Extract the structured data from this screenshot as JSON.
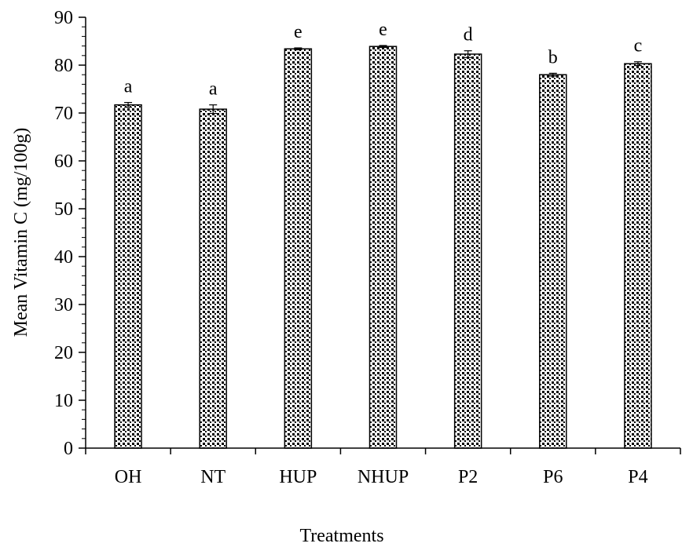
{
  "chart_data": {
    "type": "bar",
    "xlabel": "Treatments",
    "ylabel": "Mean Vitamin C (mg/100g)",
    "ylim": [
      0,
      90
    ],
    "yticks": [
      0,
      10,
      20,
      30,
      40,
      50,
      60,
      70,
      80,
      90
    ],
    "categories": [
      "OH",
      "NT",
      "HUP",
      "NHUP",
      "P2",
      "P6",
      "P4"
    ],
    "values": [
      71.7,
      70.8,
      83.4,
      83.9,
      82.3,
      78.0,
      80.3
    ],
    "errors": [
      0.5,
      0.9,
      0.2,
      0.2,
      0.7,
      0.3,
      0.4
    ],
    "significance_letters": [
      "a",
      "a",
      "e",
      "e",
      "d",
      "b",
      "c"
    ],
    "grid": false,
    "legend": "none",
    "bar_fill": "dotted pattern",
    "colors": {
      "bar_outline": "#000000",
      "dots": "#000000",
      "background": "#ffffff"
    }
  }
}
